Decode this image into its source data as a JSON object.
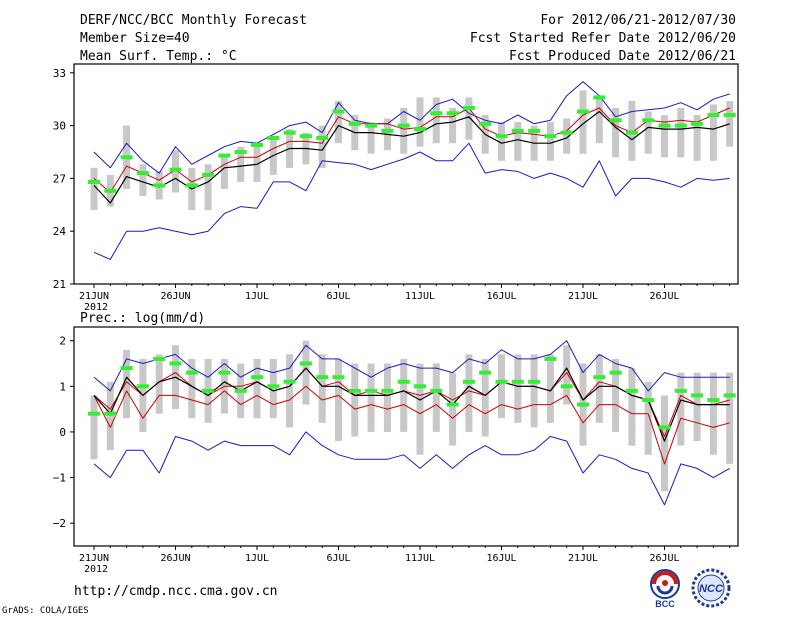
{
  "header": {
    "title": "DERF/NCC/BCC Monthly Forecast",
    "member_size": "Member Size=40",
    "variable": "Mean Surf. Temp.: °C",
    "forecast_period": "For 2012/06/21-2012/07/30",
    "started_refer": "Fcst Started Refer Date 2012/06/20",
    "produced": "Fcst Produced Date 2012/06/21"
  },
  "footer": {
    "url": "http://cmdp.ncc.cma.gov.cn",
    "grads": "GrADS: COLA/IGES"
  },
  "logos": {
    "bcc": "BCC",
    "ncc": "NCC"
  },
  "colors": {
    "max_min": "#1a1acc",
    "ensemble_mean": "#000000",
    "member_line": "#cc0000",
    "observed_bar": "#33ee33",
    "spread_bar": "#c8c8c8"
  },
  "chart_data": [
    {
      "type": "line",
      "title": "Mean Surf. Temp.: °C",
      "ylim": [
        21,
        33.5
      ],
      "yticks": [
        21,
        24,
        27,
        30,
        33
      ],
      "x": "days 1-40 (2012/06/21 - 2012/07/30)",
      "xtick_labels": [
        "21JUN",
        "26JUN",
        "1JUL",
        "6JUL",
        "11JUL",
        "16JUL",
        "21JUL",
        "26JUL"
      ],
      "xtick_days": [
        1,
        6,
        11,
        16,
        21,
        26,
        31,
        36
      ],
      "year_label": "2012",
      "series": [
        {
          "name": "max",
          "values": [
            28.5,
            27.6,
            29.0,
            28.0,
            27.3,
            28.8,
            27.8,
            28.3,
            28.8,
            29.1,
            29.0,
            29.5,
            30.0,
            30.2,
            29.6,
            31.3,
            30.3,
            30.1,
            30.1,
            30.8,
            30.3,
            31.2,
            31.5,
            30.7,
            30.3,
            30.1,
            30.6,
            30.1,
            30.3,
            31.7,
            32.5,
            31.7,
            30.5,
            30.8,
            30.9,
            31.0,
            31.3,
            30.9,
            31.5,
            31.8
          ]
        },
        {
          "name": "member",
          "values": [
            27.0,
            26.2,
            27.7,
            27.3,
            26.9,
            27.5,
            26.8,
            27.2,
            27.8,
            28.2,
            28.2,
            28.7,
            29.1,
            29.1,
            29.0,
            30.5,
            30.1,
            30.1,
            30.1,
            29.8,
            29.9,
            30.5,
            30.5,
            31.0,
            29.8,
            29.4,
            29.6,
            29.5,
            29.4,
            29.7,
            30.6,
            31.0,
            30.0,
            29.6,
            30.3,
            30.2,
            30.3,
            30.2,
            30.6,
            31.0
          ]
        },
        {
          "name": "mean",
          "values": [
            26.6,
            25.6,
            27.1,
            26.8,
            26.5,
            27.0,
            26.4,
            26.8,
            27.6,
            27.7,
            27.8,
            28.3,
            28.7,
            28.7,
            28.6,
            30.0,
            29.6,
            29.6,
            29.5,
            29.4,
            29.6,
            30.1,
            30.2,
            30.5,
            29.5,
            29.0,
            29.2,
            29.0,
            29.0,
            29.3,
            30.1,
            30.8,
            29.9,
            29.2,
            29.9,
            29.8,
            29.8,
            29.9,
            29.8,
            30.1
          ]
        },
        {
          "name": "min",
          "values": [
            22.8,
            22.4,
            24.0,
            24.0,
            24.2,
            24.0,
            23.8,
            24.0,
            25.0,
            25.4,
            25.3,
            26.8,
            26.8,
            26.3,
            28.0,
            27.9,
            27.8,
            27.5,
            27.8,
            28.1,
            28.5,
            28.0,
            28.0,
            29.0,
            27.3,
            27.5,
            27.4,
            27.0,
            27.3,
            27.0,
            26.5,
            28.0,
            26.0,
            27.0,
            27.0,
            26.8,
            26.5,
            27.0,
            26.9,
            27.0
          ]
        },
        {
          "name": "observed",
          "values": [
            26.8,
            26.3,
            28.2,
            27.3,
            26.6,
            27.5,
            26.6,
            27.2,
            28.3,
            28.5,
            28.9,
            29.3,
            29.6,
            29.4,
            29.3,
            30.8,
            30.1,
            30.0,
            29.7,
            30.0,
            29.8,
            30.7,
            30.7,
            31.0,
            30.1,
            29.4,
            29.7,
            29.7,
            29.4,
            29.6,
            30.8,
            31.6,
            30.3,
            29.6,
            30.3,
            30.0,
            30.0,
            30.1,
            30.6,
            30.6
          ]
        },
        {
          "name": "spread_low",
          "values": [
            25.2,
            25.4,
            26.4,
            26.0,
            25.8,
            26.2,
            25.2,
            25.2,
            26.4,
            26.8,
            26.8,
            27.2,
            27.6,
            27.8,
            27.6,
            29.0,
            28.6,
            28.4,
            28.6,
            28.4,
            28.8,
            29.0,
            29.0,
            29.2,
            28.4,
            28.0,
            28.0,
            28.0,
            28.0,
            28.4,
            28.4,
            29.0,
            28.2,
            28.0,
            28.4,
            28.2,
            28.2,
            28.0,
            28.0,
            28.8
          ]
        },
        {
          "name": "spread_high",
          "values": [
            27.6,
            27.2,
            30.0,
            27.8,
            27.4,
            28.6,
            27.6,
            27.8,
            28.4,
            28.8,
            28.8,
            29.2,
            29.8,
            29.6,
            30.0,
            31.4,
            30.6,
            30.2,
            30.4,
            31.0,
            31.6,
            31.6,
            31.0,
            31.6,
            30.6,
            30.2,
            30.2,
            30.0,
            30.2,
            30.4,
            32.0,
            31.6,
            31.0,
            31.4,
            30.8,
            30.6,
            31.0,
            30.6,
            31.2,
            31.4
          ]
        }
      ]
    },
    {
      "type": "line",
      "title": "Prec.: log(mm/d)",
      "ylim": [
        -2.5,
        2.3
      ],
      "yticks": [
        -2,
        -1,
        0,
        1,
        2
      ],
      "x": "days 1-40 (2012/06/21 - 2012/07/30)",
      "xtick_labels": [
        "21JUN",
        "26JUN",
        "1JUL",
        "6JUL",
        "11JUL",
        "16JUL",
        "21JUL",
        "26JUL"
      ],
      "xtick_days": [
        1,
        6,
        11,
        16,
        21,
        26,
        31,
        36
      ],
      "year_label": "2012",
      "series": [
        {
          "name": "max",
          "values": [
            1.2,
            0.9,
            1.6,
            1.5,
            1.6,
            1.7,
            1.4,
            1.2,
            1.5,
            1.2,
            1.4,
            1.3,
            1.4,
            1.9,
            1.6,
            1.6,
            1.4,
            1.2,
            1.4,
            1.5,
            1.4,
            1.4,
            1.3,
            1.6,
            1.5,
            1.8,
            1.6,
            1.6,
            1.7,
            2.0,
            1.3,
            1.7,
            1.5,
            1.4,
            0.9,
            1.3,
            1.2,
            1.2,
            1.2,
            1.2
          ]
        },
        {
          "name": "mean",
          "values": [
            0.8,
            0.4,
            1.2,
            0.8,
            1.1,
            1.2,
            1.0,
            0.8,
            1.1,
            0.9,
            1.1,
            0.9,
            1.0,
            1.4,
            1.0,
            1.0,
            0.8,
            0.8,
            0.8,
            0.9,
            0.7,
            0.9,
            0.6,
            1.0,
            0.8,
            1.1,
            1.0,
            1.0,
            0.9,
            1.4,
            0.7,
            1.0,
            1.0,
            0.8,
            0.7,
            -0.2,
            0.7,
            0.6,
            0.6,
            0.6
          ]
        },
        {
          "name": "member",
          "values": [
            0.8,
            0.5,
            1.1,
            0.8,
            1.1,
            1.3,
            1.0,
            0.8,
            1.0,
            1.0,
            1.1,
            0.9,
            1.0,
            1.4,
            1.0,
            1.1,
            0.8,
            0.9,
            0.8,
            0.9,
            0.8,
            0.9,
            0.7,
            0.9,
            0.8,
            1.1,
            1.0,
            1.0,
            0.9,
            1.3,
            0.7,
            1.1,
            1.0,
            0.8,
            0.7,
            -0.1,
            0.8,
            0.6,
            0.6,
            0.7
          ]
        },
        {
          "name": "lower",
          "values": [
            0.8,
            0.1,
            0.9,
            0.3,
            0.8,
            0.8,
            0.7,
            0.6,
            0.9,
            0.6,
            0.8,
            0.6,
            0.7,
            1.0,
            0.7,
            0.8,
            0.5,
            0.6,
            0.5,
            0.6,
            0.4,
            0.6,
            0.3,
            0.6,
            0.4,
            0.6,
            0.5,
            0.6,
            0.6,
            0.8,
            0.2,
            0.6,
            0.6,
            0.4,
            0.4,
            -0.7,
            0.3,
            0.2,
            0.1,
            0.2
          ]
        },
        {
          "name": "min",
          "values": [
            -0.7,
            -1.0,
            -0.4,
            -0.4,
            -0.9,
            -0.1,
            -0.2,
            -0.4,
            -0.2,
            -0.3,
            -0.3,
            -0.3,
            -0.5,
            0.0,
            -0.3,
            -0.5,
            -0.6,
            -0.6,
            -0.6,
            -0.5,
            -0.8,
            -0.5,
            -0.8,
            -0.5,
            -0.3,
            -0.5,
            -0.5,
            -0.4,
            -0.1,
            -0.2,
            -0.9,
            -0.5,
            -0.6,
            -0.8,
            -0.9,
            -1.6,
            -0.7,
            -0.8,
            -1.0,
            -0.8
          ]
        },
        {
          "name": "observed",
          "values": [
            0.4,
            0.4,
            1.4,
            1.0,
            1.6,
            1.5,
            1.3,
            0.9,
            1.3,
            0.9,
            1.2,
            1.0,
            1.1,
            1.5,
            1.2,
            1.2,
            0.9,
            0.9,
            0.9,
            1.1,
            1.0,
            0.9,
            0.6,
            1.1,
            1.3,
            1.1,
            1.1,
            1.1,
            1.6,
            1.0,
            0.6,
            1.2,
            1.3,
            0.9,
            0.7,
            0.1,
            0.9,
            0.8,
            0.7,
            0.8
          ]
        },
        {
          "name": "spread_low",
          "values": [
            -0.6,
            -0.4,
            0.3,
            0.0,
            0.4,
            0.5,
            0.3,
            0.2,
            0.4,
            0.3,
            0.3,
            0.3,
            0.1,
            0.6,
            0.2,
            -0.2,
            -0.1,
            0.0,
            0.0,
            0.0,
            -0.5,
            0.0,
            -0.3,
            0.0,
            -0.1,
            0.3,
            0.2,
            0.1,
            0.2,
            0.6,
            -0.3,
            0.2,
            0.0,
            -0.3,
            -0.5,
            -1.3,
            -0.3,
            -0.2,
            -0.5,
            -0.7
          ]
        },
        {
          "name": "spread_high",
          "values": [
            0.8,
            1.1,
            1.8,
            1.6,
            1.7,
            1.9,
            1.6,
            1.6,
            1.6,
            1.5,
            1.6,
            1.6,
            1.7,
            2.0,
            1.7,
            1.6,
            1.5,
            1.5,
            1.5,
            1.6,
            1.5,
            1.5,
            1.3,
            1.7,
            1.6,
            1.7,
            1.7,
            1.7,
            1.7,
            1.9,
            1.5,
            1.7,
            1.6,
            1.4,
            1.1,
            0.8,
            1.3,
            1.3,
            1.3,
            1.3
          ]
        }
      ]
    }
  ]
}
